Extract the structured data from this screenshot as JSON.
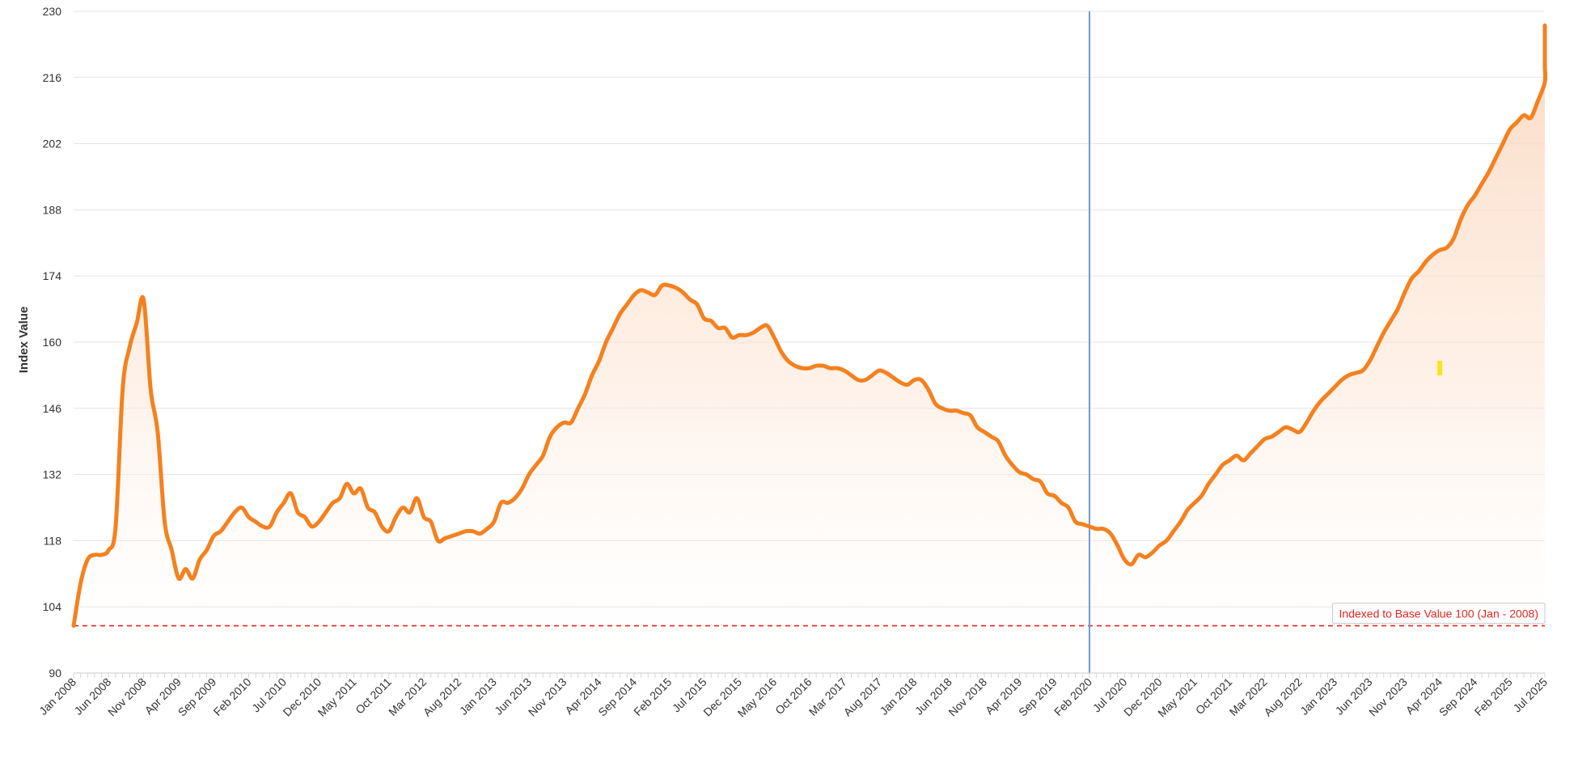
{
  "chart_data": {
    "type": "area",
    "ylabel": "Index Value",
    "ylim": [
      90,
      230
    ],
    "yticks": [
      90,
      104,
      118,
      132,
      146,
      160,
      174,
      188,
      202,
      216,
      230
    ],
    "xlim": [
      "2008-01",
      "2025-07"
    ],
    "xtick_labels": [
      "Jan 2008",
      "Jun 2008",
      "Nov 2008",
      "Apr 2009",
      "Sep 2009",
      "Feb 2010",
      "Jul 2010",
      "Dec 2010",
      "May 2011",
      "Oct 2011",
      "Mar 2012",
      "Aug 2012",
      "Jan 2013",
      "Jun 2013",
      "Nov 2013",
      "Apr 2014",
      "Sep 2014",
      "Feb 2015",
      "Jul 2015",
      "Dec 2015",
      "May 2016",
      "Oct 2016",
      "Mar 2017",
      "Aug 2017",
      "Jan 2018",
      "Jun 2018",
      "Nov 2018",
      "Apr 2019",
      "Sep 2019",
      "Feb 2020",
      "Jul 2020",
      "Dec 2020",
      "May 2021",
      "Oct 2021",
      "Mar 2022",
      "Aug 2022",
      "Jan 2023",
      "Jun 2023",
      "Nov 2023",
      "Apr 2024",
      "Sep 2024",
      "Feb 2025",
      "Jul 2025"
    ],
    "grid": true,
    "legend": "none",
    "series": [
      {
        "color": "#f4811f",
        "fill_color": "#fbd8bf",
        "points": [
          [
            "2008-01",
            100
          ],
          [
            "2008-02",
            109
          ],
          [
            "2008-03",
            114
          ],
          [
            "2008-04",
            115
          ],
          [
            "2008-05",
            115
          ],
          [
            "2008-06",
            116
          ],
          [
            "2008-07",
            121
          ],
          [
            "2008-08",
            150
          ],
          [
            "2008-09",
            159
          ],
          [
            "2008-10",
            164
          ],
          [
            "2008-11",
            169
          ],
          [
            "2008-12",
            150
          ],
          [
            "2009-01",
            141
          ],
          [
            "2009-02",
            122
          ],
          [
            "2009-03",
            116
          ],
          [
            "2009-04",
            110
          ],
          [
            "2009-05",
            112
          ],
          [
            "2009-06",
            110
          ],
          [
            "2009-07",
            114
          ],
          [
            "2009-08",
            116
          ],
          [
            "2009-09",
            119
          ],
          [
            "2009-10",
            120
          ],
          [
            "2009-11",
            122
          ],
          [
            "2009-12",
            124
          ],
          [
            "2010-01",
            125
          ],
          [
            "2010-02",
            123
          ],
          [
            "2010-03",
            122
          ],
          [
            "2010-04",
            121
          ],
          [
            "2010-05",
            121
          ],
          [
            "2010-06",
            124
          ],
          [
            "2010-07",
            126
          ],
          [
            "2010-08",
            128
          ],
          [
            "2010-09",
            124
          ],
          [
            "2010-10",
            123
          ],
          [
            "2010-11",
            121
          ],
          [
            "2010-12",
            122
          ],
          [
            "2011-01",
            124
          ],
          [
            "2011-02",
            126
          ],
          [
            "2011-03",
            127
          ],
          [
            "2011-04",
            130
          ],
          [
            "2011-05",
            128
          ],
          [
            "2011-06",
            129
          ],
          [
            "2011-07",
            125
          ],
          [
            "2011-08",
            124
          ],
          [
            "2011-09",
            121
          ],
          [
            "2011-10",
            120
          ],
          [
            "2011-11",
            123
          ],
          [
            "2011-12",
            125
          ],
          [
            "2012-01",
            124
          ],
          [
            "2012-02",
            127
          ],
          [
            "2012-03",
            123
          ],
          [
            "2012-04",
            122
          ],
          [
            "2012-05",
            118
          ],
          [
            "2012-06",
            118.5
          ],
          [
            "2012-07",
            119
          ],
          [
            "2012-08",
            119.5
          ],
          [
            "2012-09",
            120
          ],
          [
            "2012-10",
            120
          ],
          [
            "2012-11",
            119.5
          ],
          [
            "2012-12",
            120.5
          ],
          [
            "2013-01",
            122
          ],
          [
            "2013-02",
            126
          ],
          [
            "2013-03",
            126
          ],
          [
            "2013-04",
            127
          ],
          [
            "2013-05",
            129
          ],
          [
            "2013-06",
            132
          ],
          [
            "2013-07",
            134
          ],
          [
            "2013-08",
            136
          ],
          [
            "2013-09",
            140
          ],
          [
            "2013-10",
            142
          ],
          [
            "2013-11",
            143
          ],
          [
            "2013-12",
            143
          ],
          [
            "2014-01",
            146
          ],
          [
            "2014-02",
            149
          ],
          [
            "2014-03",
            153
          ],
          [
            "2014-04",
            156
          ],
          [
            "2014-05",
            160
          ],
          [
            "2014-06",
            163
          ],
          [
            "2014-07",
            166
          ],
          [
            "2014-08",
            168
          ],
          [
            "2014-09",
            170
          ],
          [
            "2014-10",
            171
          ],
          [
            "2014-11",
            170.5
          ],
          [
            "2014-12",
            170
          ],
          [
            "2015-01",
            172
          ],
          [
            "2015-02",
            172
          ],
          [
            "2015-03",
            171.5
          ],
          [
            "2015-04",
            170.5
          ],
          [
            "2015-05",
            169
          ],
          [
            "2015-06",
            168
          ],
          [
            "2015-07",
            165
          ],
          [
            "2015-08",
            164.5
          ],
          [
            "2015-09",
            163
          ],
          [
            "2015-10",
            163
          ],
          [
            "2015-11",
            161
          ],
          [
            "2015-12",
            161.5
          ],
          [
            "2016-01",
            161.5
          ],
          [
            "2016-02",
            162
          ],
          [
            "2016-03",
            163
          ],
          [
            "2016-04",
            163.5
          ],
          [
            "2016-05",
            161
          ],
          [
            "2016-06",
            158
          ],
          [
            "2016-07",
            156
          ],
          [
            "2016-08",
            155
          ],
          [
            "2016-09",
            154.5
          ],
          [
            "2016-10",
            154.5
          ],
          [
            "2016-11",
            155
          ],
          [
            "2016-12",
            155
          ],
          [
            "2017-01",
            154.5
          ],
          [
            "2017-02",
            154.5
          ],
          [
            "2017-03",
            154
          ],
          [
            "2017-04",
            153
          ],
          [
            "2017-05",
            152
          ],
          [
            "2017-06",
            152
          ],
          [
            "2017-07",
            153
          ],
          [
            "2017-08",
            154
          ],
          [
            "2017-09",
            153.5
          ],
          [
            "2017-10",
            152.5
          ],
          [
            "2017-11",
            151.5
          ],
          [
            "2017-12",
            151
          ],
          [
            "2018-01",
            152
          ],
          [
            "2018-02",
            152
          ],
          [
            "2018-03",
            150
          ],
          [
            "2018-04",
            147
          ],
          [
            "2018-05",
            146
          ],
          [
            "2018-06",
            145.5
          ],
          [
            "2018-07",
            145.5
          ],
          [
            "2018-08",
            145
          ],
          [
            "2018-09",
            144.5
          ],
          [
            "2018-10",
            142
          ],
          [
            "2018-11",
            141
          ],
          [
            "2018-12",
            140
          ],
          [
            "2019-01",
            139
          ],
          [
            "2019-02",
            136
          ],
          [
            "2019-03",
            134
          ],
          [
            "2019-04",
            132.5
          ],
          [
            "2019-05",
            132
          ],
          [
            "2019-06",
            131
          ],
          [
            "2019-07",
            130.5
          ],
          [
            "2019-08",
            128
          ],
          [
            "2019-09",
            127.5
          ],
          [
            "2019-10",
            126
          ],
          [
            "2019-11",
            125
          ],
          [
            "2019-12",
            122
          ],
          [
            "2020-01",
            121.5
          ],
          [
            "2020-02",
            121
          ],
          [
            "2020-03",
            120.5
          ],
          [
            "2020-04",
            120.5
          ],
          [
            "2020-05",
            119.5
          ],
          [
            "2020-06",
            117
          ],
          [
            "2020-07",
            114
          ],
          [
            "2020-08",
            113
          ],
          [
            "2020-09",
            115
          ],
          [
            "2020-10",
            114.5
          ],
          [
            "2020-11",
            115.5
          ],
          [
            "2020-12",
            117
          ],
          [
            "2021-01",
            118
          ],
          [
            "2021-02",
            120
          ],
          [
            "2021-03",
            122
          ],
          [
            "2021-04",
            124.5
          ],
          [
            "2021-05",
            126
          ],
          [
            "2021-06",
            127.5
          ],
          [
            "2021-07",
            130
          ],
          [
            "2021-08",
            132
          ],
          [
            "2021-09",
            134
          ],
          [
            "2021-10",
            135
          ],
          [
            "2021-11",
            136
          ],
          [
            "2021-12",
            135
          ],
          [
            "2022-01",
            136.5
          ],
          [
            "2022-02",
            138
          ],
          [
            "2022-03",
            139.5
          ],
          [
            "2022-04",
            140
          ],
          [
            "2022-05",
            141
          ],
          [
            "2022-06",
            142
          ],
          [
            "2022-07",
            141.5
          ],
          [
            "2022-08",
            141
          ],
          [
            "2022-09",
            143
          ],
          [
            "2022-10",
            145.5
          ],
          [
            "2022-11",
            147.5
          ],
          [
            "2022-12",
            149
          ],
          [
            "2023-01",
            150.5
          ],
          [
            "2023-02",
            152
          ],
          [
            "2023-03",
            153
          ],
          [
            "2023-04",
            153.5
          ],
          [
            "2023-05",
            154
          ],
          [
            "2023-06",
            156
          ],
          [
            "2023-07",
            159
          ],
          [
            "2023-08",
            162
          ],
          [
            "2023-09",
            164.5
          ],
          [
            "2023-10",
            167
          ],
          [
            "2023-11",
            170.5
          ],
          [
            "2023-12",
            173.5
          ],
          [
            "2024-01",
            175
          ],
          [
            "2024-02",
            177
          ],
          [
            "2024-03",
            178.5
          ],
          [
            "2024-04",
            179.5
          ],
          [
            "2024-05",
            180
          ],
          [
            "2024-06",
            182
          ],
          [
            "2024-07",
            186
          ],
          [
            "2024-08",
            189
          ],
          [
            "2024-09",
            191
          ],
          [
            "2024-10",
            193.5
          ],
          [
            "2024-11",
            196
          ],
          [
            "2024-12",
            199
          ],
          [
            "2025-01",
            202
          ],
          [
            "2025-02",
            205
          ],
          [
            "2025-03",
            206.5
          ],
          [
            "2025-04",
            208
          ],
          [
            "2025-05",
            207.5
          ],
          [
            "2025-06",
            211
          ],
          [
            "2025-07",
            215
          ],
          [
            "2025-08",
            218.5
          ],
          [
            "2025-09",
            221
          ],
          [
            "2025-10",
            224
          ],
          [
            "2025-11",
            227
          ]
        ]
      }
    ],
    "reference_line": {
      "y": 100,
      "style": "dashed",
      "color": "#e3261f",
      "label": "Indexed to Base Value 100 (Jan - 2008)"
    },
    "vertical_marker": {
      "x": "2020-02",
      "color": "#6f9ad6"
    },
    "marker_small": {
      "x": "2024-04",
      "y": 154.5,
      "color": "#ffe21a"
    }
  }
}
